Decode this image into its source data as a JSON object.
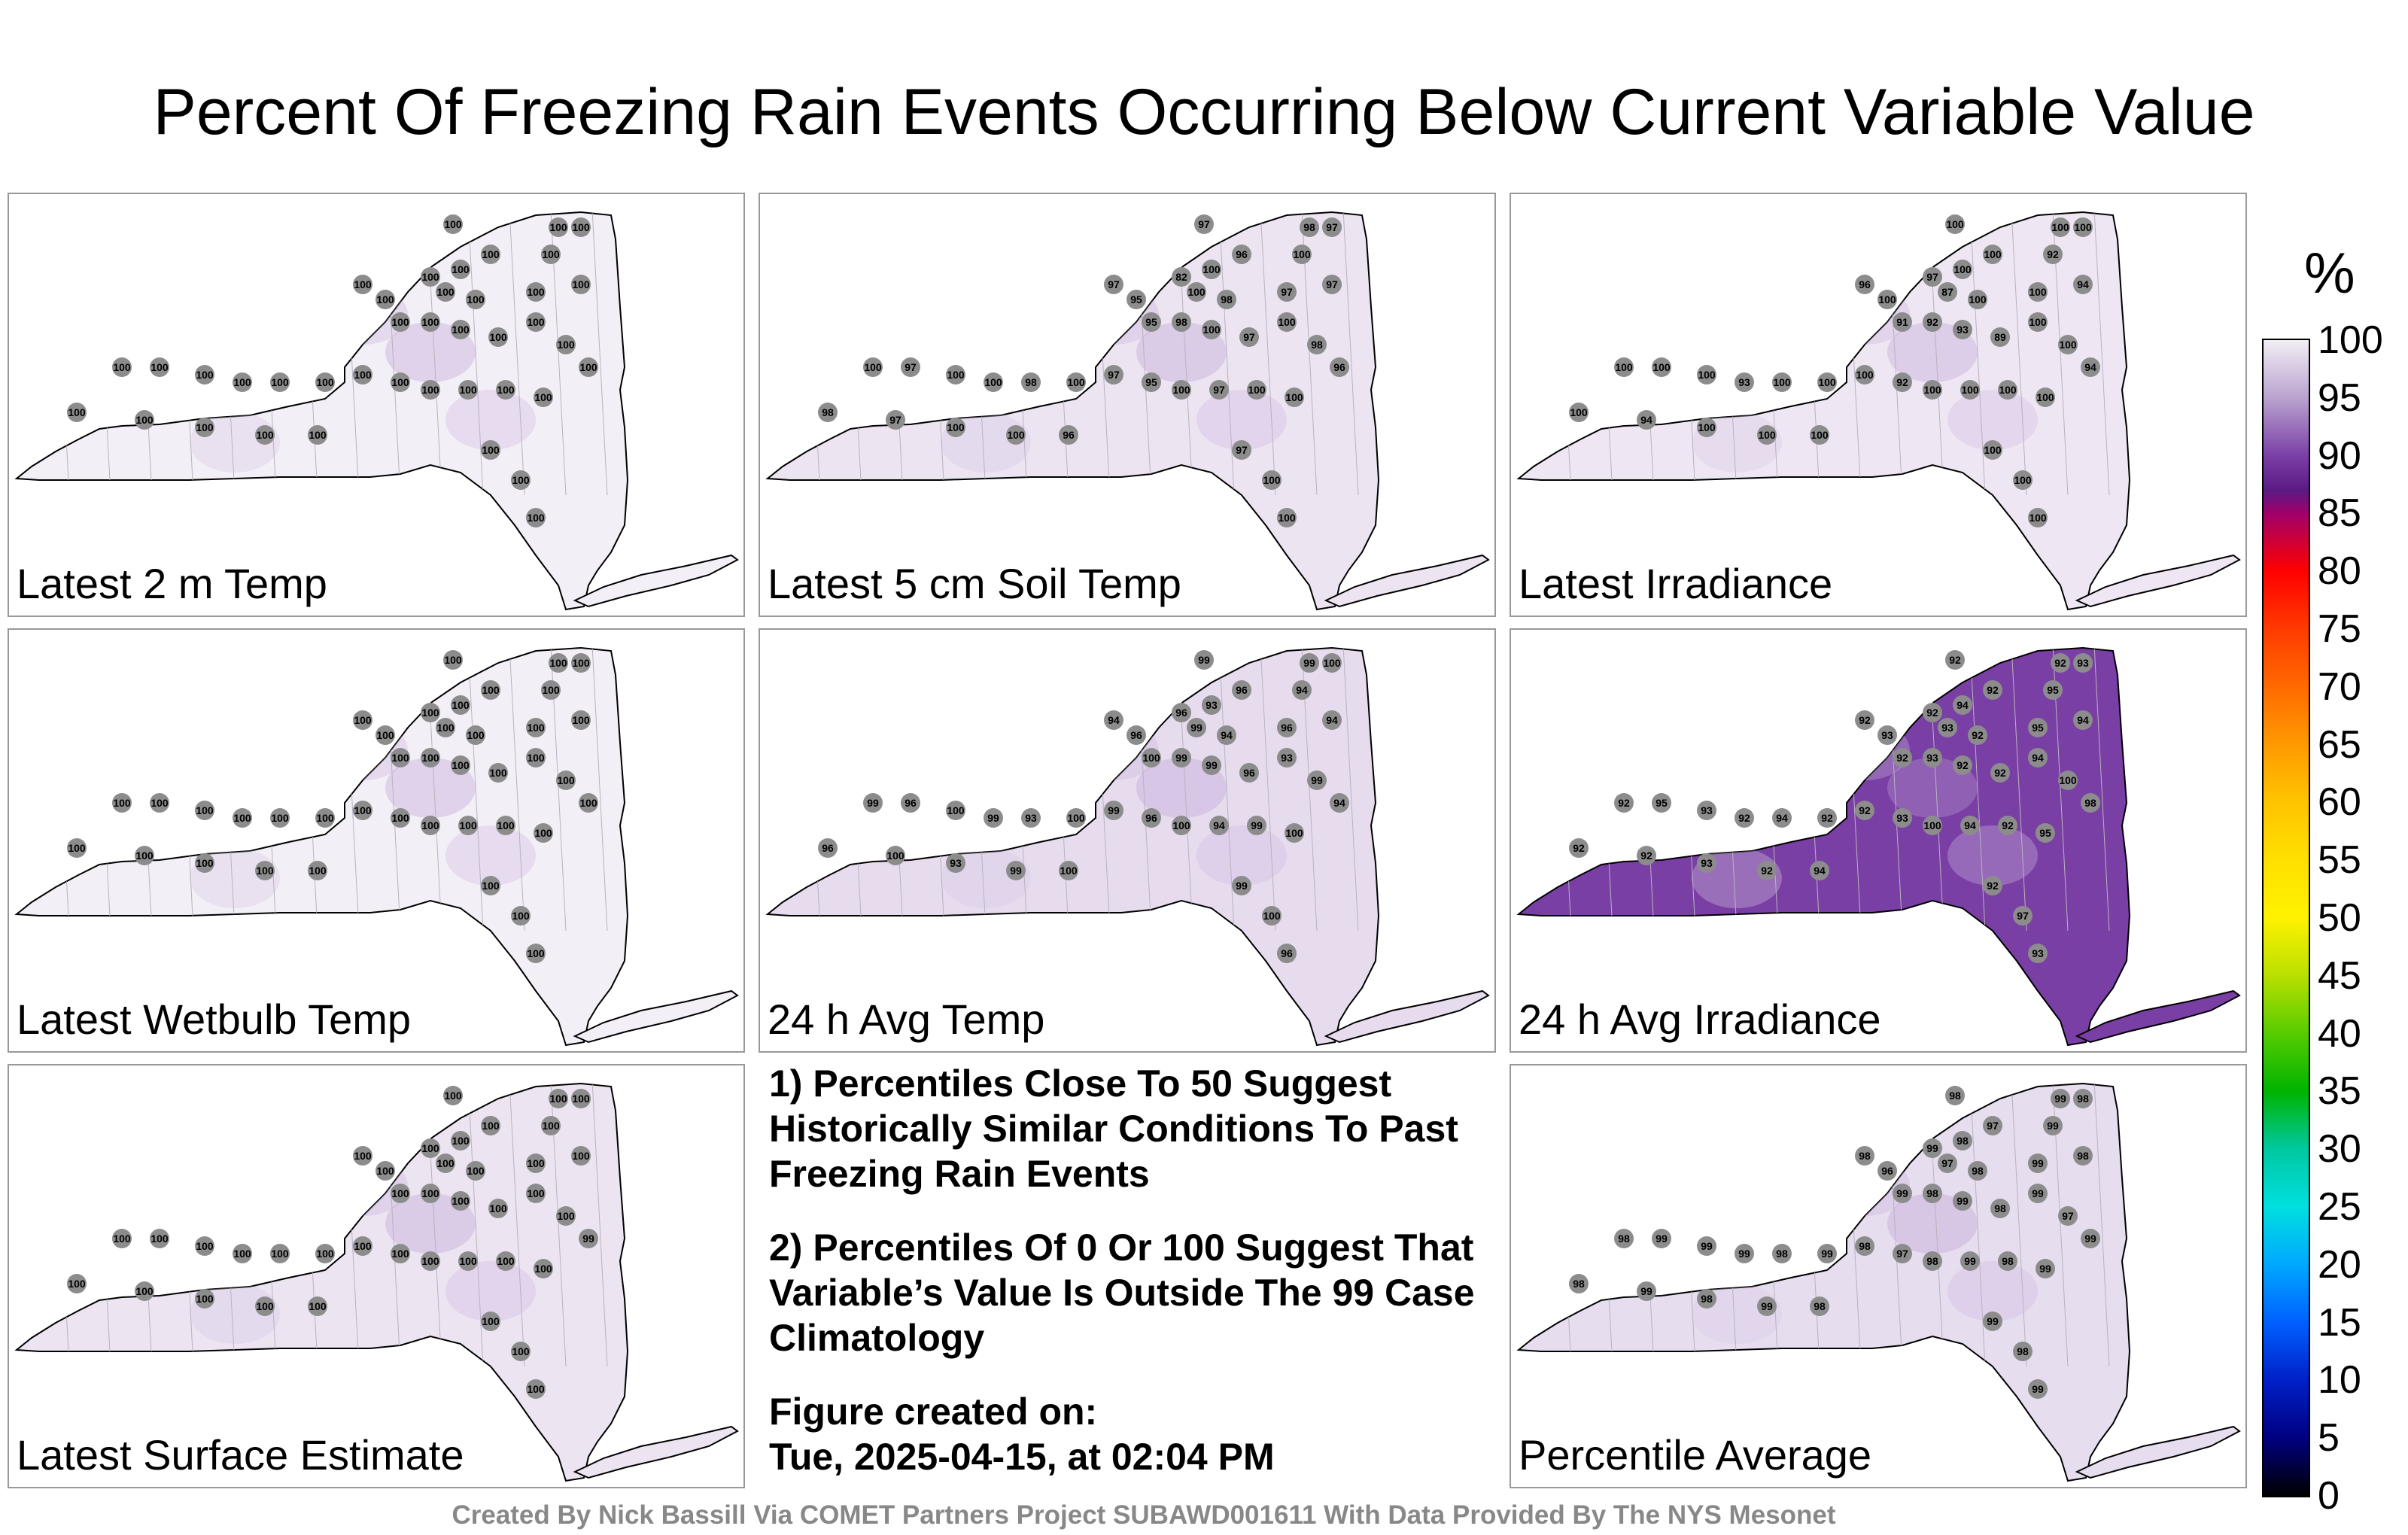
{
  "title": "Percent Of Freezing Rain Events Occurring Below Current Variable Value",
  "panels": [
    {
      "label": "Latest 2 m Temp",
      "base_color": "#f3eff6",
      "values": [
        "100",
        "100",
        "100",
        "100",
        "100",
        "100",
        "100",
        "100",
        "100",
        "100",
        "100",
        "100",
        "100",
        "100",
        "100",
        "100",
        "100",
        "100",
        "100",
        "100",
        "100",
        "100",
        "100",
        "100",
        "100",
        "100",
        "100",
        "100",
        "100",
        "100",
        "100",
        "100",
        "100",
        "100",
        "100",
        "100",
        "100",
        "100",
        "100",
        "100"
      ]
    },
    {
      "label": "Latest 5 cm Soil Temp",
      "base_color": "#ece4f1",
      "values": [
        "97",
        "98",
        "97",
        "100",
        "96",
        "100",
        "82",
        "97",
        "95",
        "100",
        "98",
        "97",
        "97",
        "95",
        "98",
        "100",
        "97",
        "100",
        "98",
        "96",
        "100",
        "97",
        "100",
        "100",
        "98",
        "100",
        "97",
        "95",
        "100",
        "97",
        "100",
        "100",
        "98",
        "97",
        "100",
        "100",
        "96",
        "97",
        "100",
        "100"
      ]
    },
    {
      "label": "Latest Irradiance",
      "base_color": "#eee7f3",
      "values": [
        "100",
        "100",
        "100",
        "92",
        "100",
        "100",
        "97",
        "96",
        "100",
        "87",
        "100",
        "100",
        "94",
        "91",
        "92",
        "93",
        "89",
        "100",
        "100",
        "94",
        "100",
        "100",
        "100",
        "93",
        "100",
        "100",
        "100",
        "92",
        "100",
        "100",
        "100",
        "100",
        "100",
        "94",
        "100",
        "100",
        "100",
        "100",
        "100",
        "100"
      ]
    },
    {
      "label": "Latest Wetbulb Temp",
      "base_color": "#f3eff6",
      "values": [
        "100",
        "100",
        "100",
        "100",
        "100",
        "100",
        "100",
        "100",
        "100",
        "100",
        "100",
        "100",
        "100",
        "100",
        "100",
        "100",
        "100",
        "100",
        "100",
        "100",
        "100",
        "100",
        "100",
        "100",
        "100",
        "100",
        "100",
        "100",
        "100",
        "100",
        "100",
        "100",
        "100",
        "100",
        "100",
        "100",
        "100",
        "100",
        "100",
        "100"
      ]
    },
    {
      "label": "24 h Avg Temp",
      "base_color": "#e6dcee",
      "values": [
        "99",
        "99",
        "100",
        "94",
        "96",
        "93",
        "96",
        "94",
        "96",
        "99",
        "94",
        "96",
        "94",
        "100",
        "99",
        "99",
        "96",
        "93",
        "99",
        "94",
        "99",
        "96",
        "100",
        "99",
        "93",
        "100",
        "99",
        "96",
        "100",
        "94",
        "99",
        "100",
        "96",
        "100",
        "93",
        "99",
        "100",
        "99",
        "100",
        "96"
      ]
    },
    {
      "label": "24 h Avg Irradiance",
      "base_color": "#7a3fa4",
      "values": [
        "92",
        "92",
        "93",
        "95",
        "92",
        "94",
        "92",
        "92",
        "93",
        "93",
        "92",
        "95",
        "94",
        "92",
        "93",
        "92",
        "92",
        "94",
        "100",
        "98",
        "92",
        "95",
        "93",
        "92",
        "94",
        "92",
        "92",
        "93",
        "100",
        "94",
        "92",
        "95",
        "92",
        "92",
        "93",
        "92",
        "94",
        "92",
        "97",
        "93"
      ]
    },
    {
      "label": "Latest Surface Estimate",
      "base_color": "#ece4f1",
      "values": [
        "100",
        "100",
        "100",
        "100",
        "100",
        "100",
        "100",
        "100",
        "100",
        "100",
        "100",
        "100",
        "100",
        "100",
        "100",
        "100",
        "100",
        "100",
        "100",
        "99",
        "100",
        "100",
        "100",
        "100",
        "100",
        "100",
        "100",
        "100",
        "100",
        "100",
        "100",
        "100",
        "100",
        "100",
        "100",
        "100",
        "100",
        "100",
        "100",
        "100"
      ]
    },
    {
      "label": "Percentile Average",
      "base_color": "#e6ddef",
      "values": [
        "98",
        "99",
        "98",
        "99",
        "97",
        "98",
        "99",
        "98",
        "96",
        "97",
        "98",
        "99",
        "98",
        "99",
        "98",
        "99",
        "98",
        "99",
        "97",
        "99",
        "98",
        "99",
        "99",
        "99",
        "98",
        "99",
        "98",
        "97",
        "98",
        "99",
        "98",
        "99",
        "98",
        "99",
        "98",
        "99",
        "98",
        "99",
        "98",
        "99"
      ]
    }
  ],
  "notes": {
    "note1": "1) Percentiles Close To 50 Suggest Historically Similar Conditions To Past Freezing Rain Events",
    "note2": "2) Percentiles Of 0 Or 100 Suggest That Variable’s Value Is Outside The 99 Case Climatology",
    "created_label": "Figure created on:",
    "created_date": "Tue, 2025-04-15, at 02:04 PM"
  },
  "footer": "Created By Nick Bassill Via COMET Partners Project SUBAWD001611 With Data Provided By The NYS Mesonet",
  "colorbar": {
    "unit": "%",
    "ticks": [
      "100",
      "95",
      "90",
      "85",
      "80",
      "75",
      "70",
      "65",
      "60",
      "55",
      "50",
      "45",
      "40",
      "35",
      "30",
      "25",
      "20",
      "15",
      "10",
      "5",
      "0"
    ]
  }
}
